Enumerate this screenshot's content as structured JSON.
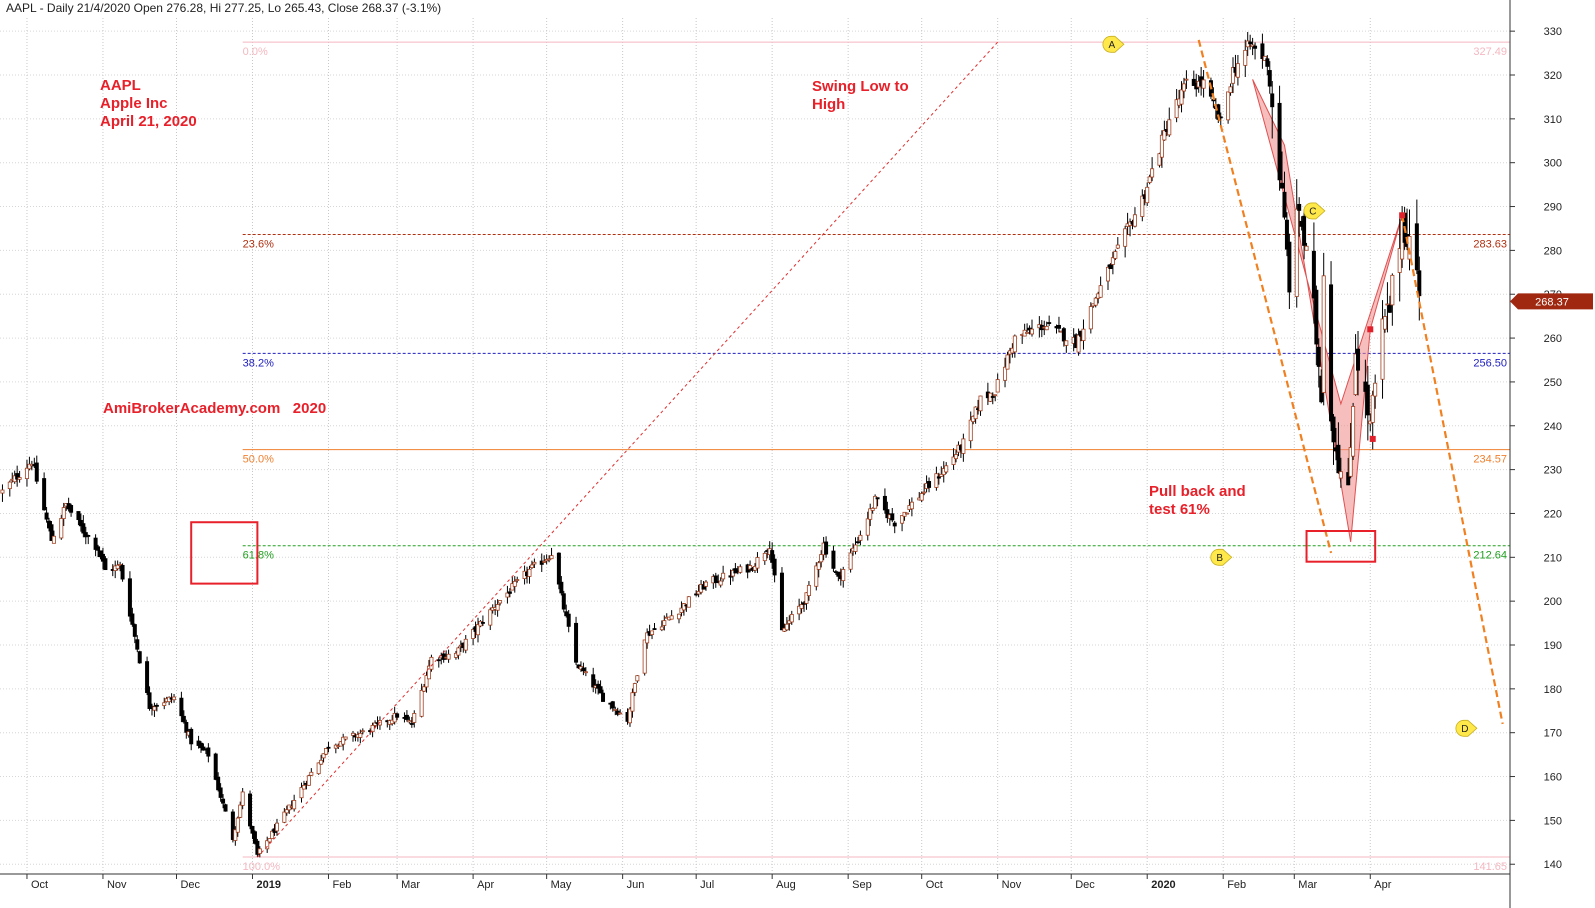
{
  "header": "AAPL - Daily 21/4/2020 Open 276.28, Hi 277.25, Lo 265.43, Close 268.37 (-3.1%)",
  "annotations": {
    "title_lines": [
      "AAPL",
      "Apple Inc",
      "April 21, 2020"
    ],
    "watermark": "AmiBrokerAcademy.com   2020",
    "swing_lines": [
      "Swing Low to",
      "High"
    ],
    "pullback_lines": [
      "Pull back and",
      "test 61%"
    ]
  },
  "colors": {
    "up_candle": "#ffffff",
    "down_candle": "#000000",
    "wick": "#000000",
    "fib_0": "#f4b8c0",
    "fib_236": "#b03010",
    "fib_382": "#2020c0",
    "fib_50": "#f08030",
    "fib_618": "#20a020",
    "fib_100": "#f4b8c0",
    "pattern_fill": "#f08888",
    "projection": "#f08020",
    "annotation_red": "#e8202a",
    "last_price_bg": "#a02810"
  },
  "chart_data": {
    "type": "candlestick",
    "title": "",
    "ylim": [
      138,
      333
    ],
    "y_ticks": [
      140,
      150,
      160,
      170,
      180,
      190,
      200,
      210,
      220,
      230,
      240,
      250,
      260,
      270,
      280,
      290,
      300,
      310,
      320,
      330
    ],
    "x_range": [
      "2018-09-20",
      "2020-05-28"
    ],
    "x_ticks": [
      {
        "date": "2018-10-01",
        "label": "Oct",
        "bold": false
      },
      {
        "date": "2018-11-01",
        "label": "Nov",
        "bold": false
      },
      {
        "date": "2018-12-01",
        "label": "Dec",
        "bold": false
      },
      {
        "date": "2019-01-01",
        "label": "2019",
        "bold": true
      },
      {
        "date": "2019-02-01",
        "label": "Feb",
        "bold": false
      },
      {
        "date": "2019-03-01",
        "label": "Mar",
        "bold": false
      },
      {
        "date": "2019-04-01",
        "label": "Apr",
        "bold": false
      },
      {
        "date": "2019-05-01",
        "label": "May",
        "bold": false
      },
      {
        "date": "2019-06-01",
        "label": "Jun",
        "bold": false
      },
      {
        "date": "2019-07-01",
        "label": "Jul",
        "bold": false
      },
      {
        "date": "2019-08-01",
        "label": "Aug",
        "bold": false
      },
      {
        "date": "2019-09-01",
        "label": "Sep",
        "bold": false
      },
      {
        "date": "2019-10-01",
        "label": "Oct",
        "bold": false
      },
      {
        "date": "2019-11-01",
        "label": "Nov",
        "bold": false
      },
      {
        "date": "2019-12-01",
        "label": "Dec",
        "bold": false
      },
      {
        "date": "2020-01-01",
        "label": "2020",
        "bold": true
      },
      {
        "date": "2020-02-01",
        "label": "Feb",
        "bold": false
      },
      {
        "date": "2020-03-01",
        "label": "Mar",
        "bold": false
      },
      {
        "date": "2020-04-01",
        "label": "Apr",
        "bold": false
      }
    ],
    "price_path": [
      [
        "2018-09-21",
        225
      ],
      [
        "2018-10-03",
        232
      ],
      [
        "2018-10-11",
        214
      ],
      [
        "2018-10-17",
        222
      ],
      [
        "2018-10-24",
        216
      ],
      [
        "2018-10-30",
        212
      ],
      [
        "2018-11-02",
        207
      ],
      [
        "2018-11-08",
        208
      ],
      [
        "2018-11-20",
        176
      ],
      [
        "2018-11-30",
        178
      ],
      [
        "2018-12-07",
        168
      ],
      [
        "2018-12-14",
        165
      ],
      [
        "2018-12-24",
        146
      ],
      [
        "2018-12-28",
        156
      ],
      [
        "2019-01-03",
        142
      ],
      [
        "2019-01-15",
        152
      ],
      [
        "2019-02-01",
        167
      ],
      [
        "2019-02-15",
        170
      ],
      [
        "2019-03-01",
        174
      ],
      [
        "2019-03-07",
        172
      ],
      [
        "2019-03-15",
        187
      ],
      [
        "2019-03-25",
        188
      ],
      [
        "2019-04-10",
        199
      ],
      [
        "2019-04-24",
        207
      ],
      [
        "2019-05-01",
        210
      ],
      [
        "2019-05-03",
        211
      ],
      [
        "2019-05-13",
        186
      ],
      [
        "2019-05-24",
        178
      ],
      [
        "2019-06-03",
        173
      ],
      [
        "2019-06-10",
        192
      ],
      [
        "2019-06-24",
        198
      ],
      [
        "2019-07-05",
        204
      ],
      [
        "2019-07-24",
        208
      ],
      [
        "2019-07-31",
        213
      ],
      [
        "2019-08-05",
        193
      ],
      [
        "2019-08-15",
        201
      ],
      [
        "2019-08-22",
        213
      ],
      [
        "2019-08-28",
        205
      ],
      [
        "2019-09-05",
        214
      ],
      [
        "2019-09-12",
        223
      ],
      [
        "2019-09-20",
        218
      ],
      [
        "2019-09-30",
        224
      ],
      [
        "2019-10-10",
        230
      ],
      [
        "2019-10-18",
        236
      ],
      [
        "2019-10-25",
        246
      ],
      [
        "2019-10-31",
        248
      ],
      [
        "2019-11-08",
        260
      ],
      [
        "2019-11-20",
        263
      ],
      [
        "2019-12-03",
        259
      ],
      [
        "2019-12-10",
        268
      ],
      [
        "2019-12-20",
        280
      ],
      [
        "2019-12-31",
        293
      ],
      [
        "2020-01-10",
        310
      ],
      [
        "2020-01-17",
        318
      ],
      [
        "2020-01-24",
        318
      ],
      [
        "2020-01-31",
        309
      ],
      [
        "2020-02-05",
        321
      ],
      [
        "2020-02-12",
        327
      ],
      [
        "2020-02-19",
        323
      ],
      [
        "2020-02-24",
        298
      ],
      [
        "2020-02-28",
        273
      ],
      [
        "2020-03-03",
        290
      ],
      [
        "2020-03-09",
        266
      ],
      [
        "2020-03-12",
        248
      ],
      [
        "2020-03-13",
        277
      ],
      [
        "2020-03-16",
        242
      ],
      [
        "2020-03-20",
        229
      ],
      [
        "2020-03-23",
        224
      ],
      [
        "2020-03-26",
        258
      ],
      [
        "2020-04-01",
        240
      ],
      [
        "2020-04-06",
        262
      ],
      [
        "2020-04-09",
        267
      ],
      [
        "2020-04-14",
        287
      ],
      [
        "2020-04-17",
        282
      ],
      [
        "2020-04-20",
        276
      ],
      [
        "2020-04-21",
        268
      ]
    ],
    "last_price": "268.37",
    "fib_levels": [
      {
        "pct": "0.0%",
        "value": "327.49",
        "price": 327.49,
        "style": "solid",
        "color_key": "fib_0"
      },
      {
        "pct": "23.6%",
        "value": "283.63",
        "price": 283.63,
        "style": "dashed",
        "color_key": "fib_236"
      },
      {
        "pct": "38.2%",
        "value": "256.50",
        "price": 256.5,
        "style": "dashed",
        "color_key": "fib_382"
      },
      {
        "pct": "50.0%",
        "value": "234.57",
        "price": 234.57,
        "style": "solid",
        "color_key": "fib_50"
      },
      {
        "pct": "61.8%",
        "value": "212.64",
        "price": 212.64,
        "style": "dashed",
        "color_key": "fib_618"
      },
      {
        "pct": "100.0%",
        "value": "141.65",
        "price": 141.65,
        "style": "solid",
        "color_key": "fib_100"
      }
    ],
    "fib_start_date": "2018-12-28",
    "wave_points": [
      {
        "label": "A",
        "date": "2019-12-18",
        "price": 327
      },
      {
        "label": "B",
        "date": "2020-01-31",
        "price": 210
      },
      {
        "label": "C",
        "date": "2020-03-09",
        "price": 289
      },
      {
        "label": "D",
        "date": "2020-05-10",
        "price": 171
      }
    ],
    "swing_line": {
      "from": [
        "2019-01-03",
        141.6
      ],
      "to": [
        "2019-11-01",
        327.5
      ]
    },
    "pattern_polygon": [
      [
        "2020-02-13",
        319
      ],
      [
        "2020-02-26",
        304
      ],
      [
        "2020-03-24",
        213.5
      ],
      [
        "2020-04-01",
        262
      ],
      [
        "2020-04-14",
        288
      ],
      [
        "2020-03-20",
        245
      ]
    ],
    "pattern_markers": [
      {
        "date": "2020-04-01",
        "price": 262
      },
      {
        "date": "2020-04-02",
        "price": 237
      },
      {
        "date": "2020-04-14",
        "price": 288
      }
    ],
    "projection_lines": [
      {
        "from": [
          "2020-01-22",
          328
        ],
        "to": [
          "2020-03-16",
          211
        ]
      },
      {
        "from": [
          "2020-04-14",
          288
        ],
        "to": [
          "2020-05-25",
          172
        ]
      }
    ],
    "highlight_boxes": [
      {
        "from": [
          "2018-12-07",
          218
        ],
        "to": [
          "2019-01-03",
          204
        ]
      },
      {
        "from": [
          "2020-03-06",
          216
        ],
        "to": [
          "2020-04-03",
          209
        ]
      }
    ]
  }
}
